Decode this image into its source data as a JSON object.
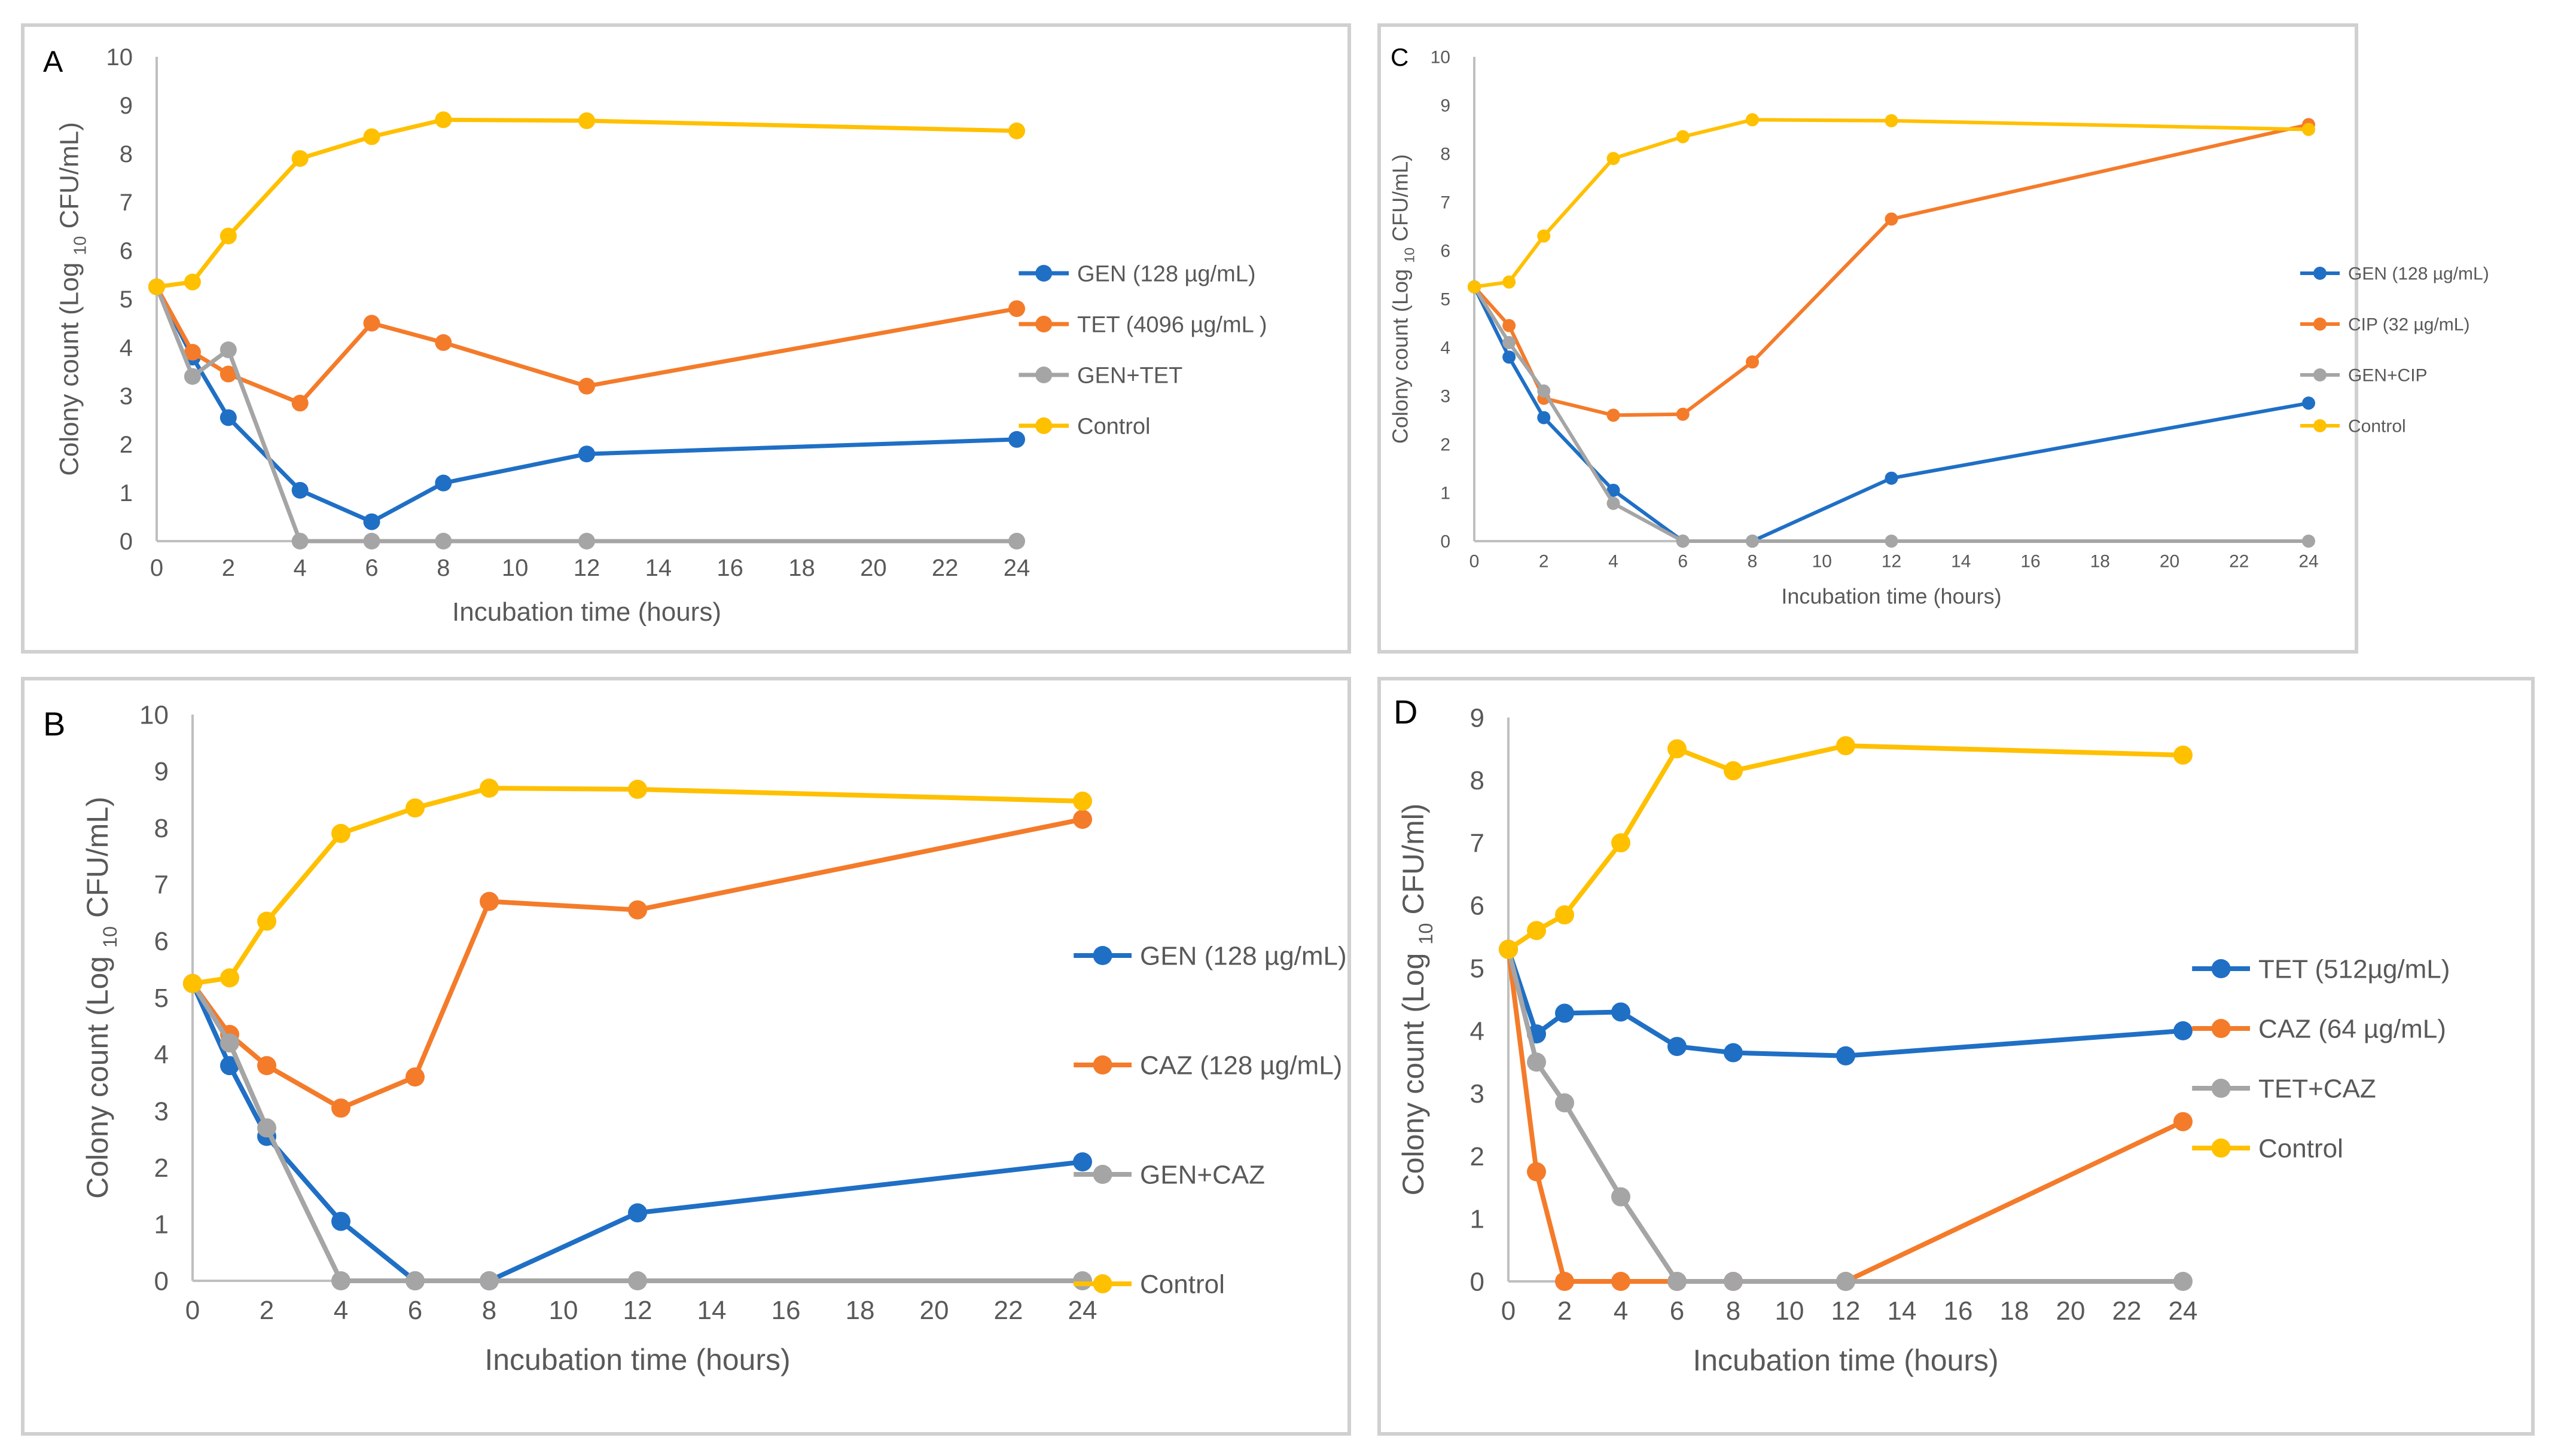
{
  "figure_colors": {
    "gen_blue": "#1F6FC5",
    "orange": "#F47B2A",
    "gray": "#A5A5A5",
    "control_yellow": "#FFC000",
    "tet_blue": "#1F6FC5"
  },
  "chart_data": [
    {
      "id": "A",
      "type": "line",
      "panel_label": "A",
      "xlabel": "Incubation time (hours)",
      "ylabel": {
        "prefix": "Colony count (Log ",
        "sub": "10",
        "suffix": " CFU/mL)"
      },
      "xlim": [
        0,
        24
      ],
      "ylim": [
        0,
        10
      ],
      "xticks": [
        0,
        2,
        4,
        6,
        8,
        10,
        12,
        14,
        16,
        18,
        20,
        22,
        24
      ],
      "yticks": [
        0,
        1,
        2,
        3,
        4,
        5,
        6,
        7,
        8,
        9,
        10
      ],
      "x": [
        0,
        1,
        2,
        4,
        6,
        8,
        12,
        24
      ],
      "series": [
        {
          "name": "GEN (128 µg/mL)",
          "color": "#1F6FC5",
          "values": [
            5.25,
            3.8,
            2.55,
            1.05,
            0.4,
            1.2,
            1.8,
            2.1
          ]
        },
        {
          "name": "TET (4096 µg/mL )",
          "color": "#F47B2A",
          "values": [
            5.25,
            3.9,
            3.45,
            2.85,
            4.5,
            4.1,
            3.2,
            4.8
          ]
        },
        {
          "name": "GEN+TET",
          "color": "#A5A5A5",
          "values": [
            5.25,
            3.4,
            3.95,
            0,
            0,
            0,
            0,
            0
          ]
        },
        {
          "name": "Control",
          "color": "#FFC000",
          "values": [
            5.25,
            5.35,
            6.3,
            7.9,
            8.35,
            8.7,
            8.68,
            8.47
          ]
        }
      ]
    },
    {
      "id": "C",
      "type": "line",
      "panel_label": "C",
      "xlabel": "Incubation time (hours)",
      "ylabel": {
        "prefix": "Colony count (Log ",
        "sub": "10",
        "suffix": " CFU/mL)"
      },
      "xlim": [
        0,
        24
      ],
      "ylim": [
        0,
        10
      ],
      "xticks": [
        0,
        2,
        4,
        6,
        8,
        10,
        12,
        14,
        16,
        18,
        20,
        22,
        24
      ],
      "yticks": [
        0,
        1,
        2,
        3,
        4,
        5,
        6,
        7,
        8,
        9,
        10
      ],
      "x": [
        0,
        1,
        2,
        4,
        6,
        8,
        12,
        24
      ],
      "series": [
        {
          "name": "GEN (128 µg/mL)",
          "color": "#1F6FC5",
          "values": [
            5.25,
            3.8,
            2.55,
            1.05,
            0,
            0,
            1.3,
            2.85
          ]
        },
        {
          "name": "CIP (32 µg/mL)",
          "color": "#F47B2A",
          "values": [
            5.25,
            4.45,
            2.95,
            2.6,
            2.62,
            3.7,
            6.65,
            8.6
          ]
        },
        {
          "name": "GEN+CIP",
          "color": "#A5A5A5",
          "values": [
            5.25,
            4.1,
            3.1,
            0.78,
            0,
            0,
            0,
            0
          ]
        },
        {
          "name": "Control",
          "color": "#FFC000",
          "values": [
            5.25,
            5.35,
            6.3,
            7.9,
            8.35,
            8.7,
            8.68,
            8.5
          ]
        }
      ]
    },
    {
      "id": "B",
      "type": "line",
      "panel_label": "B",
      "xlabel": "Incubation time (hours)",
      "ylabel": {
        "prefix": "Colony count (Log ",
        "sub": "10",
        "suffix": " CFU/mL)"
      },
      "xlim": [
        0,
        24
      ],
      "ylim": [
        0,
        10
      ],
      "xticks": [
        0,
        2,
        4,
        6,
        8,
        10,
        12,
        14,
        16,
        18,
        20,
        22,
        24
      ],
      "yticks": [
        0,
        1,
        2,
        3,
        4,
        5,
        6,
        7,
        8,
        9,
        10
      ],
      "x": [
        0,
        1,
        2,
        4,
        6,
        8,
        12,
        24
      ],
      "series": [
        {
          "name": "GEN (128 µg/mL)",
          "color": "#1F6FC5",
          "values": [
            5.25,
            3.8,
            2.55,
            1.05,
            0,
            0,
            1.2,
            2.1
          ]
        },
        {
          "name": "CAZ (128 µg/mL)",
          "color": "#F47B2A",
          "values": [
            5.25,
            4.35,
            3.8,
            3.05,
            3.6,
            6.7,
            6.55,
            8.15
          ]
        },
        {
          "name": "GEN+CAZ",
          "color": "#A5A5A5",
          "values": [
            5.25,
            4.2,
            2.7,
            0,
            0,
            0,
            0,
            0
          ]
        },
        {
          "name": "Control",
          "color": "#FFC000",
          "values": [
            5.25,
            5.35,
            6.35,
            7.9,
            8.35,
            8.7,
            8.68,
            8.47
          ]
        }
      ]
    },
    {
      "id": "D",
      "type": "line",
      "panel_label": "D",
      "xlabel": "Incubation time (hours)",
      "ylabel": {
        "prefix": "Colony count (Log ",
        "sub": "10",
        "suffix": " CFU/ml)"
      },
      "xlim": [
        0,
        24
      ],
      "ylim": [
        0,
        9
      ],
      "xticks": [
        0,
        2,
        4,
        6,
        8,
        10,
        12,
        14,
        16,
        18,
        20,
        22,
        24
      ],
      "yticks": [
        0,
        1,
        2,
        3,
        4,
        5,
        6,
        7,
        8,
        9
      ],
      "x": [
        0,
        1,
        2,
        4,
        6,
        8,
        12,
        24
      ],
      "series": [
        {
          "name": "TET (512µg/mL)",
          "color": "#1F6FC5",
          "values": [
            5.3,
            3.95,
            4.28,
            4.3,
            3.75,
            3.65,
            3.6,
            4.0
          ]
        },
        {
          "name": "CAZ (64 µg/mL)",
          "color": "#F47B2A",
          "values": [
            5.3,
            1.75,
            0,
            0,
            0,
            0,
            0,
            2.55
          ]
        },
        {
          "name": "TET+CAZ",
          "color": "#A5A5A5",
          "values": [
            5.3,
            3.5,
            2.85,
            1.35,
            0,
            0,
            0,
            0
          ]
        },
        {
          "name": "Control",
          "color": "#FFC000",
          "values": [
            5.3,
            5.6,
            5.85,
            7.0,
            8.5,
            8.15,
            8.55,
            8.4
          ]
        }
      ]
    }
  ]
}
